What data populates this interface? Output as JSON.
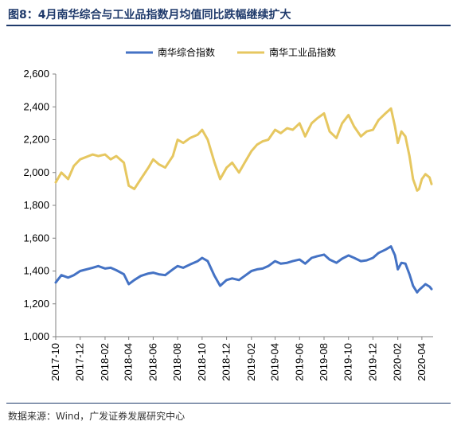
{
  "figure": {
    "title": "图8：4月南华综合与工业品指数月均值同比跌幅继续扩大",
    "source": "数据来源：Wind，广发证券发展研究中心"
  },
  "chart_data": {
    "type": "line",
    "title": "",
    "xlabel": "",
    "ylabel": "",
    "ylim": [
      1000,
      2600
    ],
    "yticks": [
      "1,000",
      "1,200",
      "1,400",
      "1,600",
      "1,800",
      "2,000",
      "2,200",
      "2,400",
      "2,600"
    ],
    "xticks": [
      "2017-10",
      "2017-12",
      "2018-02",
      "2018-04",
      "2018-06",
      "2018-08",
      "2018-10",
      "2018-12",
      "2019-02",
      "2019-04",
      "2019-06",
      "2019-08",
      "2019-10",
      "2019-12",
      "2020-02",
      "2020-04"
    ],
    "xrange": [
      "2017-10",
      "2020-04"
    ],
    "grid": false,
    "legend": "top-center",
    "series": [
      {
        "name": "南华综合指数",
        "color": "#4472c4",
        "points": [
          [
            "2017-10",
            1330
          ],
          [
            "2017-10-15",
            1375
          ],
          [
            "2017-11",
            1360
          ],
          [
            "2017-11-15",
            1375
          ],
          [
            "2017-12",
            1400
          ],
          [
            "2018-01",
            1420
          ],
          [
            "2018-01-15",
            1430
          ],
          [
            "2018-02",
            1415
          ],
          [
            "2018-02-15",
            1420
          ],
          [
            "2018-03",
            1405
          ],
          [
            "2018-03-20",
            1380
          ],
          [
            "2018-04",
            1320
          ],
          [
            "2018-04-15",
            1345
          ],
          [
            "2018-05",
            1370
          ],
          [
            "2018-05-20",
            1385
          ],
          [
            "2018-06",
            1390
          ],
          [
            "2018-06-15",
            1380
          ],
          [
            "2018-07",
            1375
          ],
          [
            "2018-07-20",
            1410
          ],
          [
            "2018-08",
            1430
          ],
          [
            "2018-08-15",
            1420
          ],
          [
            "2018-09",
            1440
          ],
          [
            "2018-09-20",
            1460
          ],
          [
            "2018-10",
            1480
          ],
          [
            "2018-10-15",
            1460
          ],
          [
            "2018-11",
            1370
          ],
          [
            "2018-11-15",
            1310
          ],
          [
            "2018-12",
            1345
          ],
          [
            "2018-12-15",
            1355
          ],
          [
            "2019-01",
            1345
          ],
          [
            "2019-01-15",
            1370
          ],
          [
            "2019-02",
            1400
          ],
          [
            "2019-02-15",
            1410
          ],
          [
            "2019-03",
            1415
          ],
          [
            "2019-03-15",
            1430
          ],
          [
            "2019-04",
            1460
          ],
          [
            "2019-04-15",
            1445
          ],
          [
            "2019-05",
            1450
          ],
          [
            "2019-05-15",
            1460
          ],
          [
            "2019-06",
            1470
          ],
          [
            "2019-06-15",
            1445
          ],
          [
            "2019-07",
            1480
          ],
          [
            "2019-07-15",
            1490
          ],
          [
            "2019-08",
            1500
          ],
          [
            "2019-08-15",
            1470
          ],
          [
            "2019-09",
            1450
          ],
          [
            "2019-09-15",
            1475
          ],
          [
            "2019-10",
            1495
          ],
          [
            "2019-10-15",
            1480
          ],
          [
            "2019-11",
            1460
          ],
          [
            "2019-11-15",
            1465
          ],
          [
            "2019-12",
            1480
          ],
          [
            "2019-12-15",
            1510
          ],
          [
            "2020-01",
            1530
          ],
          [
            "2020-01-15",
            1550
          ],
          [
            "2020-01-25",
            1495
          ],
          [
            "2020-02",
            1410
          ],
          [
            "2020-02-10",
            1450
          ],
          [
            "2020-02-20",
            1445
          ],
          [
            "2020-03",
            1380
          ],
          [
            "2020-03-10",
            1310
          ],
          [
            "2020-03-20",
            1270
          ],
          [
            "2020-03-25",
            1285
          ],
          [
            "2020-04",
            1300
          ],
          [
            "2020-04-10",
            1320
          ],
          [
            "2020-04-20",
            1305
          ],
          [
            "2020-04-25",
            1290
          ]
        ]
      },
      {
        "name": "南华工业品指数",
        "color": "#e6c760",
        "points": [
          [
            "2017-10",
            1940
          ],
          [
            "2017-10-15",
            2000
          ],
          [
            "2017-11",
            1960
          ],
          [
            "2017-11-15",
            2040
          ],
          [
            "2017-12",
            2080
          ],
          [
            "2018-01",
            2110
          ],
          [
            "2018-01-15",
            2100
          ],
          [
            "2018-02",
            2110
          ],
          [
            "2018-02-15",
            2080
          ],
          [
            "2018-03",
            2100
          ],
          [
            "2018-03-20",
            2060
          ],
          [
            "2018-04",
            1920
          ],
          [
            "2018-04-15",
            1900
          ],
          [
            "2018-05",
            1960
          ],
          [
            "2018-05-20",
            2030
          ],
          [
            "2018-06",
            2080
          ],
          [
            "2018-06-15",
            2050
          ],
          [
            "2018-07",
            2030
          ],
          [
            "2018-07-20",
            2100
          ],
          [
            "2018-08",
            2200
          ],
          [
            "2018-08-15",
            2180
          ],
          [
            "2018-09",
            2210
          ],
          [
            "2018-09-20",
            2230
          ],
          [
            "2018-10",
            2260
          ],
          [
            "2018-10-15",
            2200
          ],
          [
            "2018-11",
            2060
          ],
          [
            "2018-11-15",
            1960
          ],
          [
            "2018-12",
            2030
          ],
          [
            "2018-12-15",
            2060
          ],
          [
            "2019-01",
            2000
          ],
          [
            "2019-01-15",
            2060
          ],
          [
            "2019-02",
            2130
          ],
          [
            "2019-02-15",
            2170
          ],
          [
            "2019-03",
            2190
          ],
          [
            "2019-03-15",
            2200
          ],
          [
            "2019-04",
            2260
          ],
          [
            "2019-04-15",
            2240
          ],
          [
            "2019-05",
            2270
          ],
          [
            "2019-05-15",
            2260
          ],
          [
            "2019-06",
            2300
          ],
          [
            "2019-06-15",
            2220
          ],
          [
            "2019-07",
            2300
          ],
          [
            "2019-07-15",
            2330
          ],
          [
            "2019-08",
            2360
          ],
          [
            "2019-08-15",
            2250
          ],
          [
            "2019-09",
            2210
          ],
          [
            "2019-09-15",
            2300
          ],
          [
            "2019-10",
            2350
          ],
          [
            "2019-10-15",
            2280
          ],
          [
            "2019-11",
            2220
          ],
          [
            "2019-11-15",
            2250
          ],
          [
            "2019-12",
            2260
          ],
          [
            "2019-12-15",
            2320
          ],
          [
            "2020-01",
            2360
          ],
          [
            "2020-01-15",
            2390
          ],
          [
            "2020-01-25",
            2280
          ],
          [
            "2020-02",
            2180
          ],
          [
            "2020-02-10",
            2250
          ],
          [
            "2020-02-20",
            2220
          ],
          [
            "2020-03",
            2100
          ],
          [
            "2020-03-10",
            1960
          ],
          [
            "2020-03-20",
            1890
          ],
          [
            "2020-03-25",
            1900
          ],
          [
            "2020-04",
            1960
          ],
          [
            "2020-04-10",
            1990
          ],
          [
            "2020-04-20",
            1970
          ],
          [
            "2020-04-25",
            1930
          ]
        ]
      }
    ]
  }
}
